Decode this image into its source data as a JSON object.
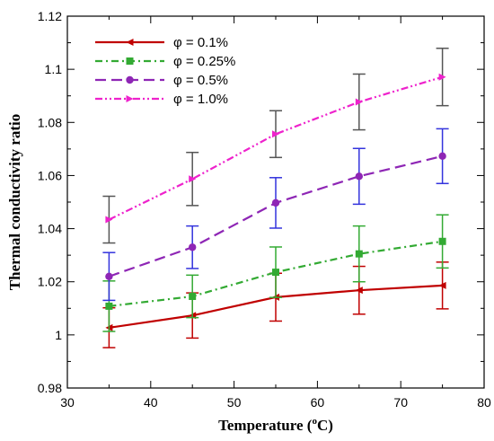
{
  "chart_data": {
    "type": "line",
    "xlabel_main": "Temperature (",
    "xlabel_sup": "o",
    "xlabel_end": "C)",
    "ylabel": "Thermal conductivity ratio",
    "xlim": [
      30,
      80
    ],
    "ylim": [
      0.98,
      1.12
    ],
    "xticks": [
      "30",
      "40",
      "50",
      "60",
      "70",
      "80"
    ],
    "yticks": [
      "0.98",
      "1",
      "1.02",
      "1.04",
      "1.06",
      "1.08",
      "1.1",
      "1.12"
    ],
    "legend_position": "top-left",
    "grid": false,
    "x": [
      35,
      45,
      55,
      65,
      75
    ],
    "series": [
      {
        "name": "φ = 0.1%",
        "color": "#c00000",
        "marker": "triangle-left",
        "dash": "solid",
        "values": [
          1.0027,
          1.0073,
          1.0142,
          1.0168,
          1.0186
        ],
        "error": [
          0.0075,
          0.0085,
          0.009,
          0.009,
          0.0088
        ],
        "error_color": "#c00000"
      },
      {
        "name": "φ = 0.25%",
        "color": "#33aa33",
        "marker": "square",
        "dash": "dashdot",
        "values": [
          1.0108,
          1.0145,
          1.0236,
          1.0305,
          1.0352
        ],
        "error": [
          0.0095,
          0.008,
          0.0095,
          0.0105,
          0.01
        ],
        "error_color": "#33aa33"
      },
      {
        "name": "φ = 0.5%",
        "color": "#8e26b5",
        "marker": "circle",
        "dash": "longdash",
        "values": [
          1.022,
          1.033,
          1.0497,
          1.0597,
          1.0673
        ],
        "error": [
          0.009,
          0.008,
          0.0095,
          0.0105,
          0.0103
        ],
        "error_color": "#3333dd"
      },
      {
        "name": "φ = 1.0%",
        "color": "#ee22cc",
        "marker": "triangle-right",
        "dash": "dashdotdot",
        "values": [
          1.0434,
          1.0587,
          1.0756,
          1.0877,
          1.0971
        ],
        "error": [
          0.0088,
          0.01,
          0.0088,
          0.0105,
          0.0108
        ],
        "error_color": "#555555"
      }
    ]
  }
}
